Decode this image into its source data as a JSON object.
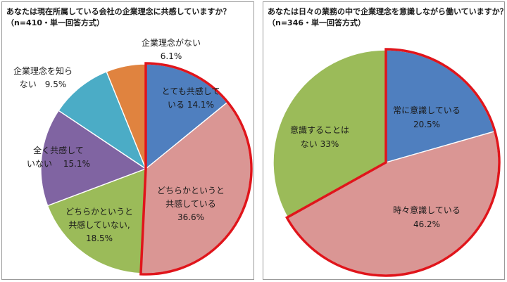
{
  "chart_data": [
    {
      "type": "pie",
      "title": "あなたは現在所属している会社の企業理念に共感していますか？",
      "subtitle": "（n=410・単一回答方式）",
      "slices": [
        {
          "label": "とても共感している",
          "value": 14.1,
          "value_text": "14.1%",
          "color": "#4f7fbf"
        },
        {
          "label": "どちらかというと共感している",
          "value": 36.6,
          "value_text": "36.6%",
          "color": "#da9694"
        },
        {
          "label": "どちらかというと共感していない,",
          "value": 18.5,
          "value_text": "18.5%",
          "color": "#9bbb59"
        },
        {
          "label": "全く共感していない",
          "value": 15.1,
          "value_text": "15.1%",
          "color": "#8064a2"
        },
        {
          "label": "企業理念を知らない",
          "value": 9.5,
          "value_text": "9.5%",
          "color": "#4bacc6"
        },
        {
          "label": "企業理念がない",
          "value": 6.1,
          "value_text": "6.1%",
          "color": "#e0833f"
        }
      ],
      "highlight": {
        "slices": [
          "とても共感している",
          "どちらかというと共感している"
        ],
        "color": "#e0151b"
      },
      "text_lines": [
        [
          "とても共感して",
          "いる 14.1%"
        ],
        [
          "どちらかというと",
          "共感している",
          "36.6%"
        ],
        [
          "どちらかというと",
          "共感していない,",
          "18.5%"
        ],
        [
          "全く共感して",
          "いない　 15.1%"
        ],
        [
          "企業理念を知ら",
          "ない　9.5%"
        ],
        [
          "企業理念がない",
          "6.1%"
        ]
      ]
    },
    {
      "type": "pie",
      "title": "あなたは日々の業務の中で企業理念を意識しながら働いていますか？",
      "subtitle": "（n=346・単一回答方式）",
      "slices": [
        {
          "label": "常に意識している",
          "value": 20.5,
          "value_text": "20.5%",
          "color": "#4f7fbf"
        },
        {
          "label": "時々意識している",
          "value": 46.2,
          "value_text": "46.2%",
          "color": "#da9694"
        },
        {
          "label": "意識することはない",
          "value": 33,
          "value_text": "33%",
          "color": "#9bbb59"
        }
      ],
      "highlight": {
        "slices": [
          "常に意識している",
          "時々意識している"
        ],
        "color": "#e0151b"
      },
      "text_lines": [
        [
          "常に意識している",
          "20.5%"
        ],
        [
          "時々意識している",
          "46.2%"
        ],
        [
          "意識することは",
          "ない 33%"
        ]
      ]
    }
  ]
}
